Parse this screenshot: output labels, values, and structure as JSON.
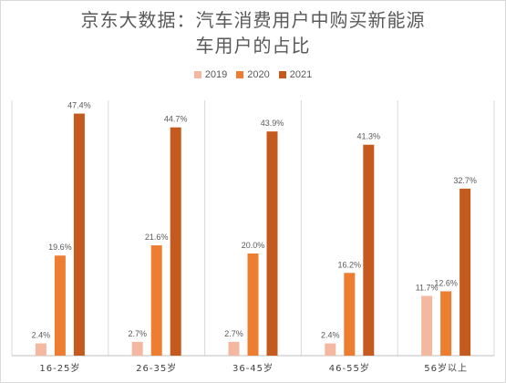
{
  "chart_data": {
    "type": "bar",
    "title": [
      "京东大数据：汽车消费用户中购买新能源",
      "车用户的占比"
    ],
    "categories": [
      "16-25岁",
      "26-35岁",
      "36-45岁",
      "46-55岁",
      "56岁以上"
    ],
    "series": [
      {
        "name": "2019",
        "color": "#f4b8a0",
        "values": [
          2.4,
          2.7,
          2.7,
          2.4,
          11.7
        ],
        "labels": [
          "2.4%",
          "2.7%",
          "2.7%",
          "2.4%",
          "11.7%"
        ]
      },
      {
        "name": "2020",
        "color": "#ed7d31",
        "values": [
          19.6,
          21.6,
          20.0,
          16.2,
          12.6
        ],
        "labels": [
          "19.6%",
          "21.6%",
          "20.0%",
          "16.2%",
          "12.6%"
        ]
      },
      {
        "name": "2021",
        "color": "#c55a1e",
        "values": [
          47.4,
          44.7,
          43.9,
          41.3,
          32.7
        ],
        "labels": [
          "47.4%",
          "44.7%",
          "43.9%",
          "41.3%",
          "32.7%"
        ]
      }
    ],
    "ylim": [
      0,
      50
    ],
    "legend_position": "top",
    "grid": "vertical category separators"
  }
}
